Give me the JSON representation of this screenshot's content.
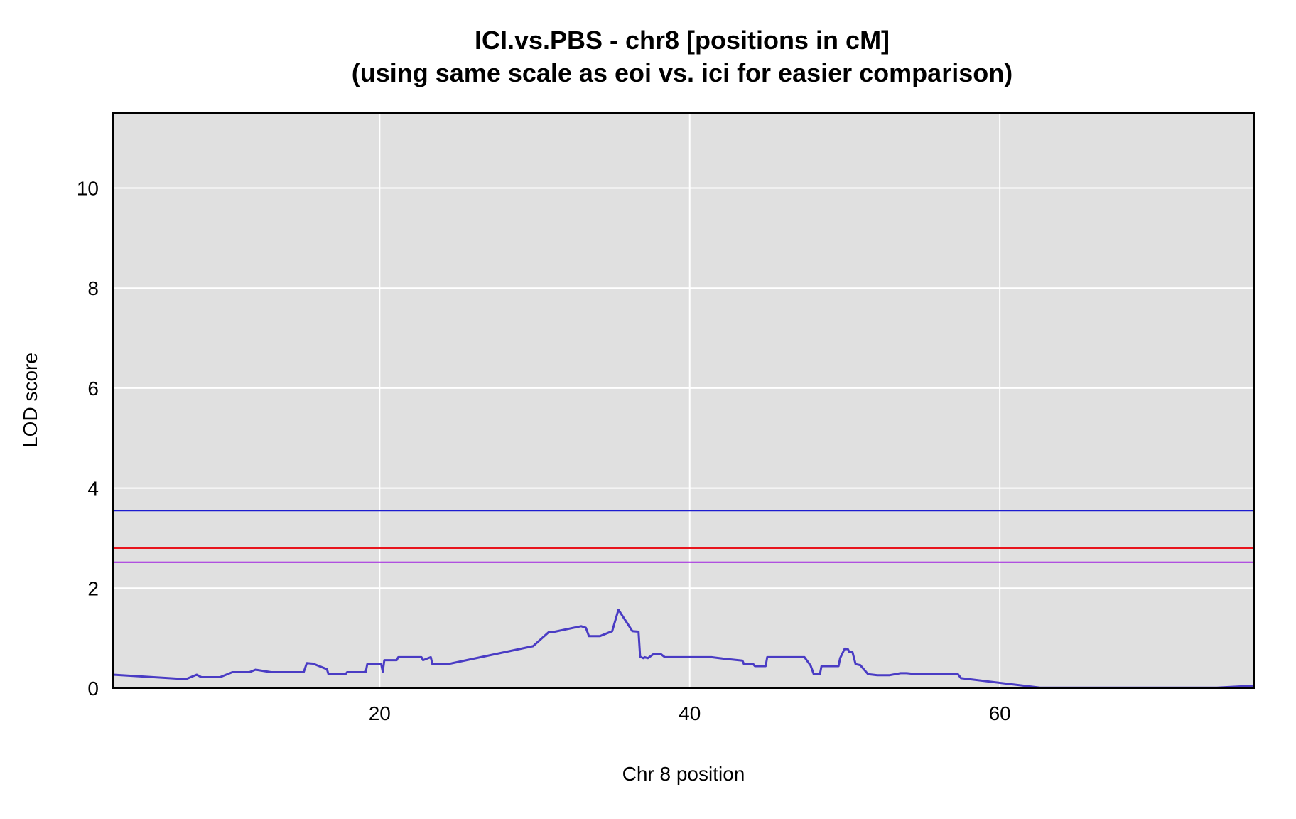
{
  "chart_data": {
    "type": "line",
    "title": "ICI.vs.PBS - chr8 [positions in cM]",
    "subtitle": "(using same scale as eoi vs. ici for easier comparison)",
    "xlabel": "Chr 8 position",
    "ylabel": "LOD score",
    "xlim": [
      2.8,
      76.4
    ],
    "ylim": [
      0,
      11.5
    ],
    "xticks": [
      20,
      40,
      60
    ],
    "yticks": [
      0,
      2,
      4,
      6,
      8,
      10
    ],
    "grid": true,
    "background": "#e0e0e0",
    "thresholds": [
      {
        "value": 3.55,
        "color": "#1c1cd0"
      },
      {
        "value": 2.8,
        "color": "#e8141c"
      },
      {
        "value": 2.52,
        "color": "#a020e0"
      }
    ],
    "series": [
      {
        "color": "#4a3cc4",
        "x": [
          2.8,
          7.5,
          8.2,
          8.5,
          9.7,
          10.5,
          11.6,
          12.0,
          13.0,
          15.1,
          15.3,
          15.7,
          16.6,
          16.7,
          17.8,
          17.9,
          19.1,
          19.2,
          20.1,
          20.2,
          20.3,
          21.1,
          21.2,
          22.7,
          22.8,
          23.3,
          23.4,
          24.4,
          29.9,
          30.9,
          31.3,
          33.0,
          33.3,
          33.5,
          34.2,
          35.0,
          35.4,
          36.3,
          36.7,
          36.8,
          37.0,
          37.1,
          37.3,
          37.7,
          38.1,
          38.4,
          41.4,
          41.9,
          43.4,
          43.5,
          44.1,
          44.2,
          44.9,
          45.0,
          47.4,
          47.8,
          48.0,
          48.4,
          48.5,
          49.6,
          49.7,
          50.0,
          50.2,
          50.3,
          50.5,
          50.7,
          51.0,
          51.5,
          52.1,
          52.9,
          53.6,
          54.0,
          54.6,
          57.3,
          57.5,
          62.6,
          64.0,
          74.0,
          76.4
        ],
        "y": [
          0.27,
          0.18,
          0.27,
          0.22,
          0.22,
          0.32,
          0.32,
          0.37,
          0.32,
          0.32,
          0.5,
          0.49,
          0.38,
          0.28,
          0.28,
          0.32,
          0.32,
          0.48,
          0.48,
          0.33,
          0.56,
          0.56,
          0.62,
          0.62,
          0.56,
          0.62,
          0.48,
          0.48,
          0.84,
          1.12,
          1.13,
          1.24,
          1.21,
          1.04,
          1.04,
          1.14,
          1.57,
          1.14,
          1.13,
          0.63,
          0.6,
          0.62,
          0.6,
          0.69,
          0.69,
          0.62,
          0.62,
          0.6,
          0.55,
          0.48,
          0.48,
          0.44,
          0.44,
          0.62,
          0.62,
          0.45,
          0.28,
          0.28,
          0.44,
          0.44,
          0.6,
          0.79,
          0.78,
          0.72,
          0.72,
          0.48,
          0.46,
          0.28,
          0.26,
          0.26,
          0.3,
          0.3,
          0.28,
          0.28,
          0.2,
          0.01,
          0.01,
          0.01,
          0.05
        ]
      }
    ]
  }
}
